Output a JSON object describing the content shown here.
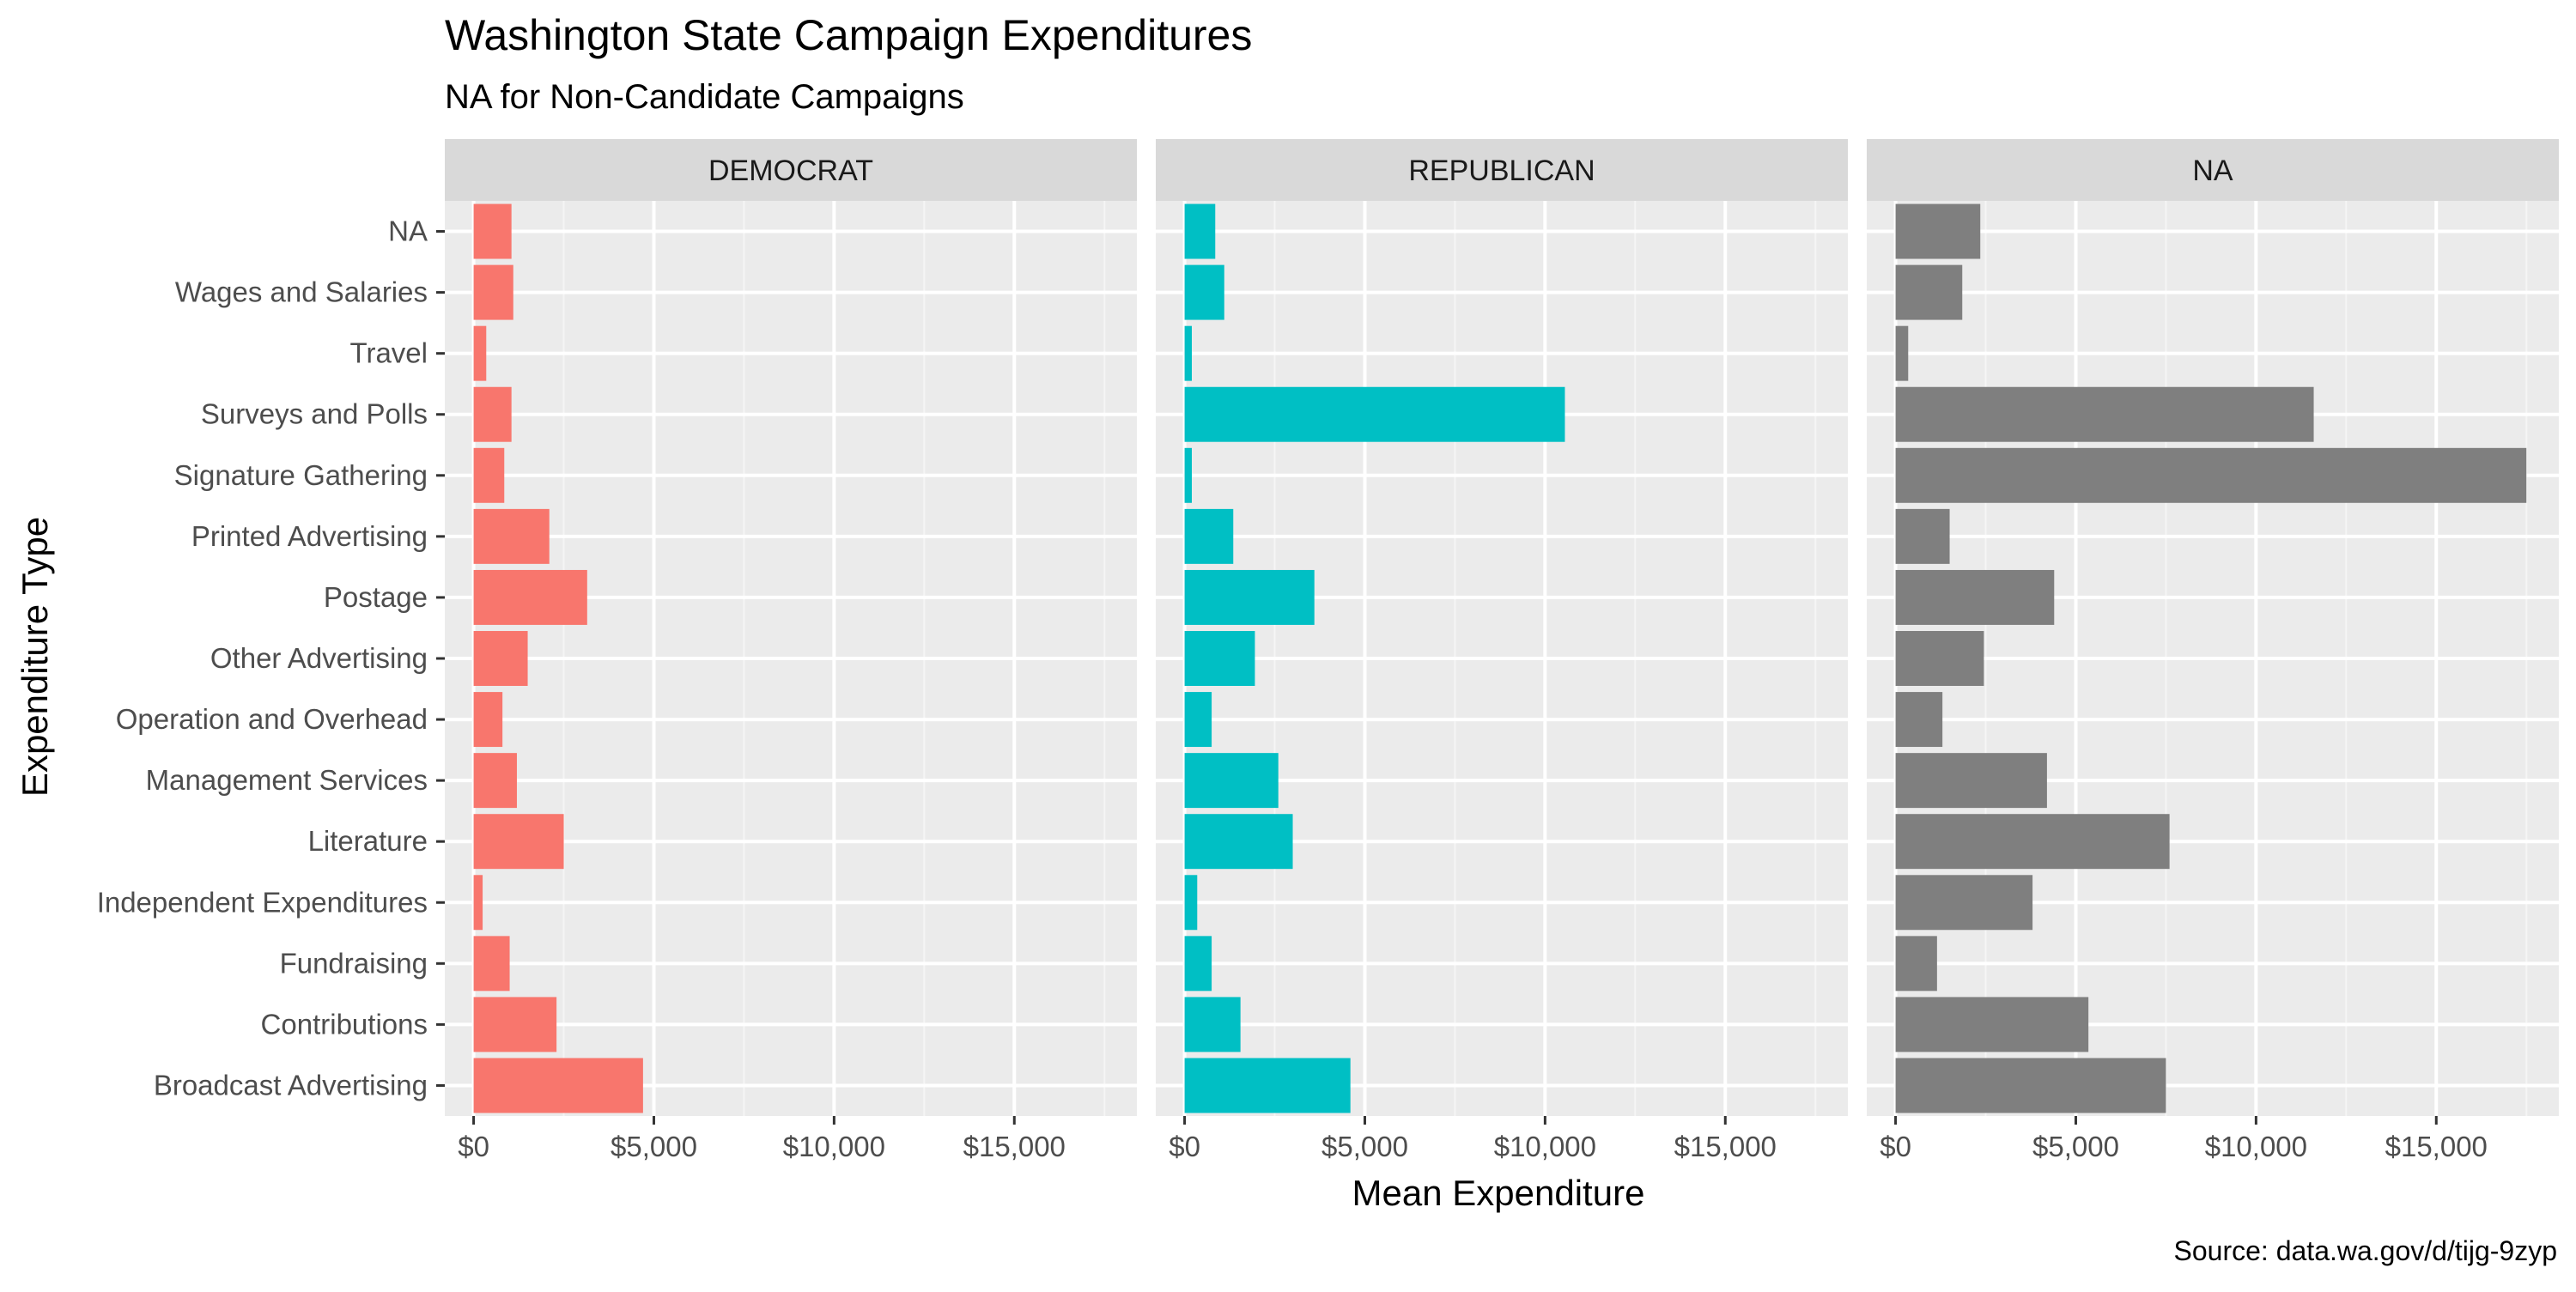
{
  "chart_data": {
    "type": "bar",
    "orientation": "horizontal",
    "title": "Washington State Campaign Expenditures",
    "subtitle": "NA for Non-Candidate Campaigns",
    "caption": "Source: data.wa.gov/d/tijg-9zyp",
    "xlabel": "Mean Expenditure",
    "ylabel": "Expenditure Type",
    "xlim": [
      -800,
      18400
    ],
    "x_ticks": [
      0,
      5000,
      10000,
      15000
    ],
    "x_tick_labels": [
      "$0",
      "$5,000",
      "$10,000",
      "$15,000"
    ],
    "grid": true,
    "legend": "none",
    "categories": [
      "NA",
      "Wages and Salaries",
      "Travel",
      "Surveys and Polls",
      "Signature Gathering",
      "Printed Advertising",
      "Postage",
      "Other Advertising",
      "Operation and Overhead",
      "Management Services",
      "Literature",
      "Independent Expenditures",
      "Fundraising",
      "Contributions",
      "Broadcast Advertising"
    ],
    "facets": [
      {
        "label": "DEMOCRAT",
        "color": "#F8766D",
        "values": [
          1050,
          1100,
          350,
          1050,
          850,
          2100,
          3150,
          1500,
          800,
          1200,
          2500,
          250,
          1000,
          2300,
          4700
        ]
      },
      {
        "label": "REPUBLICAN",
        "color": "#00BFC4",
        "values": [
          850,
          1100,
          200,
          10550,
          200,
          1350,
          3600,
          1950,
          750,
          2600,
          3000,
          350,
          750,
          1550,
          4600
        ]
      },
      {
        "label": "NA",
        "color": "#7F7F7F",
        "values": [
          2350,
          1850,
          350,
          11600,
          17500,
          1500,
          4400,
          2450,
          1300,
          4200,
          7600,
          3800,
          1150,
          5350,
          7500
        ]
      }
    ]
  }
}
